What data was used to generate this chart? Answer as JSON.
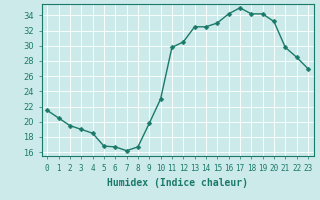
{
  "x": [
    0,
    1,
    2,
    3,
    4,
    5,
    6,
    7,
    8,
    9,
    10,
    11,
    12,
    13,
    14,
    15,
    16,
    17,
    18,
    19,
    20,
    21,
    22,
    23
  ],
  "y": [
    21.5,
    20.5,
    19.5,
    19.0,
    18.5,
    16.8,
    16.7,
    16.2,
    16.7,
    19.8,
    23.0,
    29.8,
    30.5,
    32.5,
    32.5,
    33.0,
    34.2,
    35.0,
    34.2,
    34.2,
    33.2,
    29.8,
    28.5,
    27.0
  ],
  "line_color": "#1a7a6a",
  "marker": "D",
  "markersize": 2.5,
  "linewidth": 1.0,
  "xlabel": "Humidex (Indice chaleur)",
  "ylabel": "",
  "xlim": [
    -0.5,
    23.5
  ],
  "ylim": [
    15.5,
    35.5
  ],
  "yticks": [
    16,
    18,
    20,
    22,
    24,
    26,
    28,
    30,
    32,
    34
  ],
  "xticks": [
    0,
    1,
    2,
    3,
    4,
    5,
    6,
    7,
    8,
    9,
    10,
    11,
    12,
    13,
    14,
    15,
    16,
    17,
    18,
    19,
    20,
    21,
    22,
    23
  ],
  "xtick_labels": [
    "0",
    "1",
    "2",
    "3",
    "4",
    "5",
    "6",
    "7",
    "8",
    "9",
    "10",
    "11",
    "12",
    "13",
    "14",
    "15",
    "16",
    "17",
    "18",
    "19",
    "20",
    "21",
    "22",
    "23"
  ],
  "bg_color": "#cdeaea",
  "grid_color": "#b8d8d8",
  "axes_color": "#1a7a6a",
  "tick_color": "#1a7a6a",
  "xlabel_fontsize": 7,
  "tick_fontsize": 5.5,
  "ytick_fontsize": 6
}
